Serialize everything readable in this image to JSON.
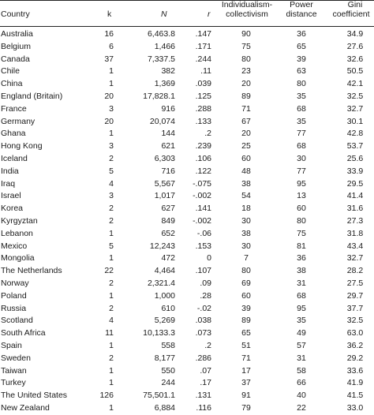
{
  "table": {
    "headers": {
      "country": "Country",
      "k": "k",
      "n": "N",
      "r": "r",
      "ic_line1": "Individualism-",
      "ic_line2": "collectivism",
      "pd_line1": "Power",
      "pd_line2": "distance",
      "gc_line1": "Gini",
      "gc_line2": "coefficient"
    },
    "rows": [
      {
        "country": "Australia",
        "k": "16",
        "n": "6,463.8",
        "r": ".147",
        "ic": "90",
        "pd": "36",
        "gc": "34.9"
      },
      {
        "country": "Belgium",
        "k": "6",
        "n": "1,466",
        "r": ".171",
        "ic": "75",
        "pd": "65",
        "gc": "27.6"
      },
      {
        "country": "Canada",
        "k": "37",
        "n": "7,337.5",
        "r": ".244",
        "ic": "80",
        "pd": "39",
        "gc": "32.6"
      },
      {
        "country": "Chile",
        "k": "1",
        "n": "382",
        "r": ".11",
        "ic": "23",
        "pd": "63",
        "gc": "50.5"
      },
      {
        "country": "China",
        "k": "1",
        "n": "1,369",
        "r": ".039",
        "ic": "20",
        "pd": "80",
        "gc": "42.1"
      },
      {
        "country": "England (Britain)",
        "k": "20",
        "n": "17,828.1",
        "r": ".125",
        "ic": "89",
        "pd": "35",
        "gc": "32.5"
      },
      {
        "country": "France",
        "k": "3",
        "n": "916",
        "r": ".288",
        "ic": "71",
        "pd": "68",
        "gc": "32.7"
      },
      {
        "country": "Germany",
        "k": "20",
        "n": "20,074",
        "r": ".133",
        "ic": "67",
        "pd": "35",
        "gc": "30.1"
      },
      {
        "country": "Ghana",
        "k": "1",
        "n": "144",
        "r": ".2",
        "ic": "20",
        "pd": "77",
        "gc": "42.8"
      },
      {
        "country": "Hong Kong",
        "k": "3",
        "n": "621",
        "r": ".239",
        "ic": "25",
        "pd": "68",
        "gc": "53.7"
      },
      {
        "country": "Iceland",
        "k": "2",
        "n": "6,303",
        "r": ".106",
        "ic": "60",
        "pd": "30",
        "gc": "25.6"
      },
      {
        "country": "India",
        "k": "5",
        "n": "716",
        "r": ".122",
        "ic": "48",
        "pd": "77",
        "gc": "33.9"
      },
      {
        "country": "Iraq",
        "k": "4",
        "n": "5,567",
        "r": "-.075",
        "ic": "38",
        "pd": "95",
        "gc": "29.5"
      },
      {
        "country": "Israel",
        "k": "3",
        "n": "1,017",
        "r": "-.002",
        "ic": "54",
        "pd": "13",
        "gc": "41.4"
      },
      {
        "country": "Korea",
        "k": "2",
        "n": "627",
        "r": ".141",
        "ic": "18",
        "pd": "60",
        "gc": "31.6"
      },
      {
        "country": "Kyrgyztan",
        "k": "2",
        "n": "849",
        "r": "-.002",
        "ic": "30",
        "pd": "80",
        "gc": "27.3"
      },
      {
        "country": "Lebanon",
        "k": "1",
        "n": "652",
        "r": "-.06",
        "ic": "38",
        "pd": "75",
        "gc": "31.8"
      },
      {
        "country": "Mexico",
        "k": "5",
        "n": "12,243",
        "r": ".153",
        "ic": "30",
        "pd": "81",
        "gc": "43.4"
      },
      {
        "country": "Mongolia",
        "k": "1",
        "n": "472",
        "r": "0",
        "ic": "7",
        "pd": "36",
        "gc": "32.7"
      },
      {
        "country": "The Netherlands",
        "k": "22",
        "n": "4,464",
        "r": ".107",
        "ic": "80",
        "pd": "38",
        "gc": "28.2"
      },
      {
        "country": "Norway",
        "k": "2",
        "n": "2,321.4",
        "r": ".09",
        "ic": "69",
        "pd": "31",
        "gc": "27.5"
      },
      {
        "country": "Poland",
        "k": "1",
        "n": "1,000",
        "r": ".28",
        "ic": "60",
        "pd": "68",
        "gc": "29.7"
      },
      {
        "country": "Russia",
        "k": "2",
        "n": "610",
        "r": "-.02",
        "ic": "39",
        "pd": "95",
        "gc": "37.7"
      },
      {
        "country": "Scotland",
        "k": "4",
        "n": "5,269",
        "r": ".038",
        "ic": "89",
        "pd": "35",
        "gc": "32.5"
      },
      {
        "country": "South Africa",
        "k": "11",
        "n": "10,133.3",
        "r": ".073",
        "ic": "65",
        "pd": "49",
        "gc": "63.0"
      },
      {
        "country": "Spain",
        "k": "1",
        "n": "558",
        "r": ".2",
        "ic": "51",
        "pd": "57",
        "gc": "36.2"
      },
      {
        "country": "Sweden",
        "k": "2",
        "n": "8,177",
        "r": ".286",
        "ic": "71",
        "pd": "31",
        "gc": "29.2"
      },
      {
        "country": "Taiwan",
        "k": "1",
        "n": "550",
        "r": ".07",
        "ic": "17",
        "pd": "58",
        "gc": "33.6"
      },
      {
        "country": "Turkey",
        "k": "1",
        "n": "244",
        "r": ".17",
        "ic": "37",
        "pd": "66",
        "gc": "41.9"
      },
      {
        "country": "The United States",
        "k": "126",
        "n": "75,501.1",
        "r": ".131",
        "ic": "91",
        "pd": "40",
        "gc": "41.5"
      },
      {
        "country": "New Zealand",
        "k": "1",
        "n": "6,884",
        "r": ".116",
        "ic": "79",
        "pd": "22",
        "gc": "33.0"
      }
    ]
  }
}
